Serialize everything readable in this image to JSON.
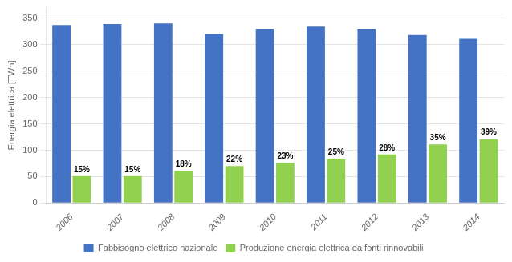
{
  "chart_data": {
    "type": "bar",
    "categories": [
      "2006",
      "2007",
      "2008",
      "2009",
      "2010",
      "2011",
      "2012",
      "2013",
      "2014"
    ],
    "series": [
      {
        "name": "Fabbisogno elettrico nazionale",
        "color": "#4472C4",
        "values": [
          337,
          339,
          340,
          320,
          330,
          334,
          330,
          318,
          311
        ]
      },
      {
        "name": "Produzione energia elettrica da fonti rinnovabili",
        "color": "#92D050",
        "values": [
          51,
          51,
          61,
          70,
          76,
          84,
          92,
          111,
          121
        ],
        "annotations": [
          "15%",
          "15%",
          "18%",
          "22%",
          "23%",
          "25%",
          "28%",
          "35%",
          "39%"
        ]
      }
    ],
    "y_label": "Energia elettrica [TWh]",
    "ylim": [
      0,
      370
    ],
    "yticks": [
      0,
      50,
      100,
      150,
      200,
      250,
      300,
      350
    ],
    "grid": true,
    "legend": "bottom"
  }
}
